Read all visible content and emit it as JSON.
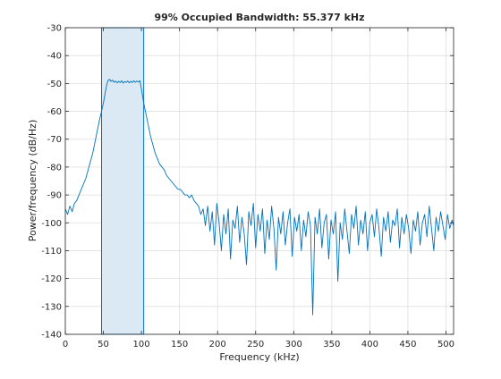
{
  "chart_data": {
    "type": "line",
    "title": "99% Occupied Bandwidth: 55.377 kHz",
    "xlabel": "Frequency (kHz)",
    "ylabel": "Power/frequency (dB/Hz)",
    "xlim": [
      0,
      510
    ],
    "ylim": [
      -140,
      -30
    ],
    "xticks": [
      0,
      50,
      100,
      150,
      200,
      250,
      300,
      350,
      400,
      450,
      500
    ],
    "yticks": [
      -30,
      -40,
      -50,
      -60,
      -70,
      -80,
      -90,
      -100,
      -110,
      -120,
      -130,
      -140
    ],
    "grid": true,
    "occupied_band": [
      47.6,
      103.0
    ],
    "line_color": "#0072bd",
    "band_fill_color": "#dbe9f5",
    "spectrum_points": [
      [
        0,
        -95
      ],
      [
        3,
        -97
      ],
      [
        6,
        -94
      ],
      [
        9,
        -96
      ],
      [
        12,
        -93
      ],
      [
        15,
        -92
      ],
      [
        18,
        -90
      ],
      [
        21,
        -88
      ],
      [
        24,
        -86
      ],
      [
        27,
        -84
      ],
      [
        30,
        -81
      ],
      [
        33,
        -78
      ],
      [
        36,
        -75
      ],
      [
        39,
        -71
      ],
      [
        42,
        -67
      ],
      [
        45,
        -63
      ],
      [
        47.6,
        -60
      ],
      [
        50,
        -57
      ],
      [
        52,
        -54
      ],
      [
        54,
        -51
      ],
      [
        56,
        -49
      ],
      [
        58,
        -48.5
      ],
      [
        60,
        -49.3
      ],
      [
        62,
        -48.8
      ],
      [
        64,
        -49.6
      ],
      [
        66,
        -49.1
      ],
      [
        68,
        -49.8
      ],
      [
        70,
        -49.2
      ],
      [
        72,
        -49.7
      ],
      [
        74,
        -49.0
      ],
      [
        76,
        -49.9
      ],
      [
        78,
        -49.3
      ],
      [
        80,
        -49.6
      ],
      [
        82,
        -49.1
      ],
      [
        84,
        -49.8
      ],
      [
        86,
        -49.2
      ],
      [
        88,
        -49.7
      ],
      [
        90,
        -49.0
      ],
      [
        92,
        -49.6
      ],
      [
        94,
        -49.1
      ],
      [
        96,
        -49.5
      ],
      [
        98,
        -49.0
      ],
      [
        100,
        -52
      ],
      [
        103,
        -57
      ],
      [
        106,
        -61
      ],
      [
        109,
        -65
      ],
      [
        112,
        -69
      ],
      [
        115,
        -72
      ],
      [
        118,
        -75
      ],
      [
        121,
        -77
      ],
      [
        124,
        -79
      ],
      [
        127,
        -80
      ],
      [
        130,
        -81
      ],
      [
        133,
        -83
      ],
      [
        136,
        -84
      ],
      [
        139,
        -85
      ],
      [
        142,
        -86
      ],
      [
        145,
        -87
      ],
      [
        148,
        -88
      ],
      [
        151,
        -88
      ],
      [
        154,
        -89
      ],
      [
        157,
        -90
      ],
      [
        160,
        -90
      ],
      [
        163,
        -91
      ],
      [
        166,
        -90
      ],
      [
        169,
        -92
      ],
      [
        172,
        -93
      ],
      [
        175,
        -94
      ],
      [
        178,
        -97
      ],
      [
        181,
        -95
      ],
      [
        184,
        -101
      ],
      [
        187,
        -94
      ],
      [
        190,
        -103
      ],
      [
        193,
        -96
      ],
      [
        196,
        -108
      ],
      [
        199,
        -93
      ],
      [
        202,
        -100
      ],
      [
        205,
        -110
      ],
      [
        208,
        -97
      ],
      [
        211,
        -104
      ],
      [
        214,
        -95
      ],
      [
        217,
        -113
      ],
      [
        220,
        -99
      ],
      [
        223,
        -102
      ],
      [
        226,
        -94
      ],
      [
        229,
        -107
      ],
      [
        232,
        -98
      ],
      [
        235,
        -104
      ],
      [
        238,
        -115
      ],
      [
        241,
        -96
      ],
      [
        244,
        -101
      ],
      [
        247,
        -93
      ],
      [
        250,
        -109
      ],
      [
        253,
        -97
      ],
      [
        256,
        -103
      ],
      [
        259,
        -95
      ],
      [
        262,
        -111
      ],
      [
        265,
        -99
      ],
      [
        268,
        -106
      ],
      [
        271,
        -94
      ],
      [
        274,
        -102
      ],
      [
        277,
        -117
      ],
      [
        280,
        -98
      ],
      [
        283,
        -104
      ],
      [
        286,
        -96
      ],
      [
        289,
        -108
      ],
      [
        292,
        -100
      ],
      [
        295,
        -95
      ],
      [
        298,
        -112
      ],
      [
        301,
        -98
      ],
      [
        304,
        -103
      ],
      [
        307,
        -97
      ],
      [
        310,
        -110
      ],
      [
        313,
        -99
      ],
      [
        316,
        -105
      ],
      [
        319,
        -96
      ],
      [
        322,
        -101
      ],
      [
        325,
        -133
      ],
      [
        328,
        -98
      ],
      [
        331,
        -104
      ],
      [
        334,
        -95
      ],
      [
        337,
        -109
      ],
      [
        340,
        -100
      ],
      [
        343,
        -97
      ],
      [
        346,
        -113
      ],
      [
        349,
        -99
      ],
      [
        352,
        -104
      ],
      [
        355,
        -96
      ],
      [
        358,
        -121
      ],
      [
        361,
        -100
      ],
      [
        364,
        -106
      ],
      [
        367,
        -95
      ],
      [
        370,
        -103
      ],
      [
        373,
        -111
      ],
      [
        376,
        -97
      ],
      [
        379,
        -102
      ],
      [
        382,
        -94
      ],
      [
        385,
        -108
      ],
      [
        388,
        -99
      ],
      [
        391,
        -104
      ],
      [
        394,
        -96
      ],
      [
        397,
        -110
      ],
      [
        400,
        -100
      ],
      [
        403,
        -97
      ],
      [
        406,
        -105
      ],
      [
        409,
        -95
      ],
      [
        412,
        -102
      ],
      [
        415,
        -112
      ],
      [
        418,
        -98
      ],
      [
        421,
        -103
      ],
      [
        424,
        -96
      ],
      [
        427,
        -107
      ],
      [
        430,
        -99
      ],
      [
        433,
        -101
      ],
      [
        436,
        -95
      ],
      [
        439,
        -109
      ],
      [
        442,
        -98
      ],
      [
        445,
        -104
      ],
      [
        448,
        -97
      ],
      [
        451,
        -102
      ],
      [
        454,
        -111
      ],
      [
        457,
        -99
      ],
      [
        460,
        -103
      ],
      [
        463,
        -96
      ],
      [
        466,
        -108
      ],
      [
        469,
        -100
      ],
      [
        472,
        -97
      ],
      [
        475,
        -105
      ],
      [
        478,
        -94
      ],
      [
        481,
        -102
      ],
      [
        484,
        -110
      ],
      [
        487,
        -98
      ],
      [
        490,
        -103
      ],
      [
        493,
        -96
      ],
      [
        496,
        -101
      ],
      [
        499,
        -106
      ],
      [
        502,
        -97
      ],
      [
        505,
        -102
      ],
      [
        508,
        -99
      ],
      [
        510,
        -101
      ]
    ]
  }
}
